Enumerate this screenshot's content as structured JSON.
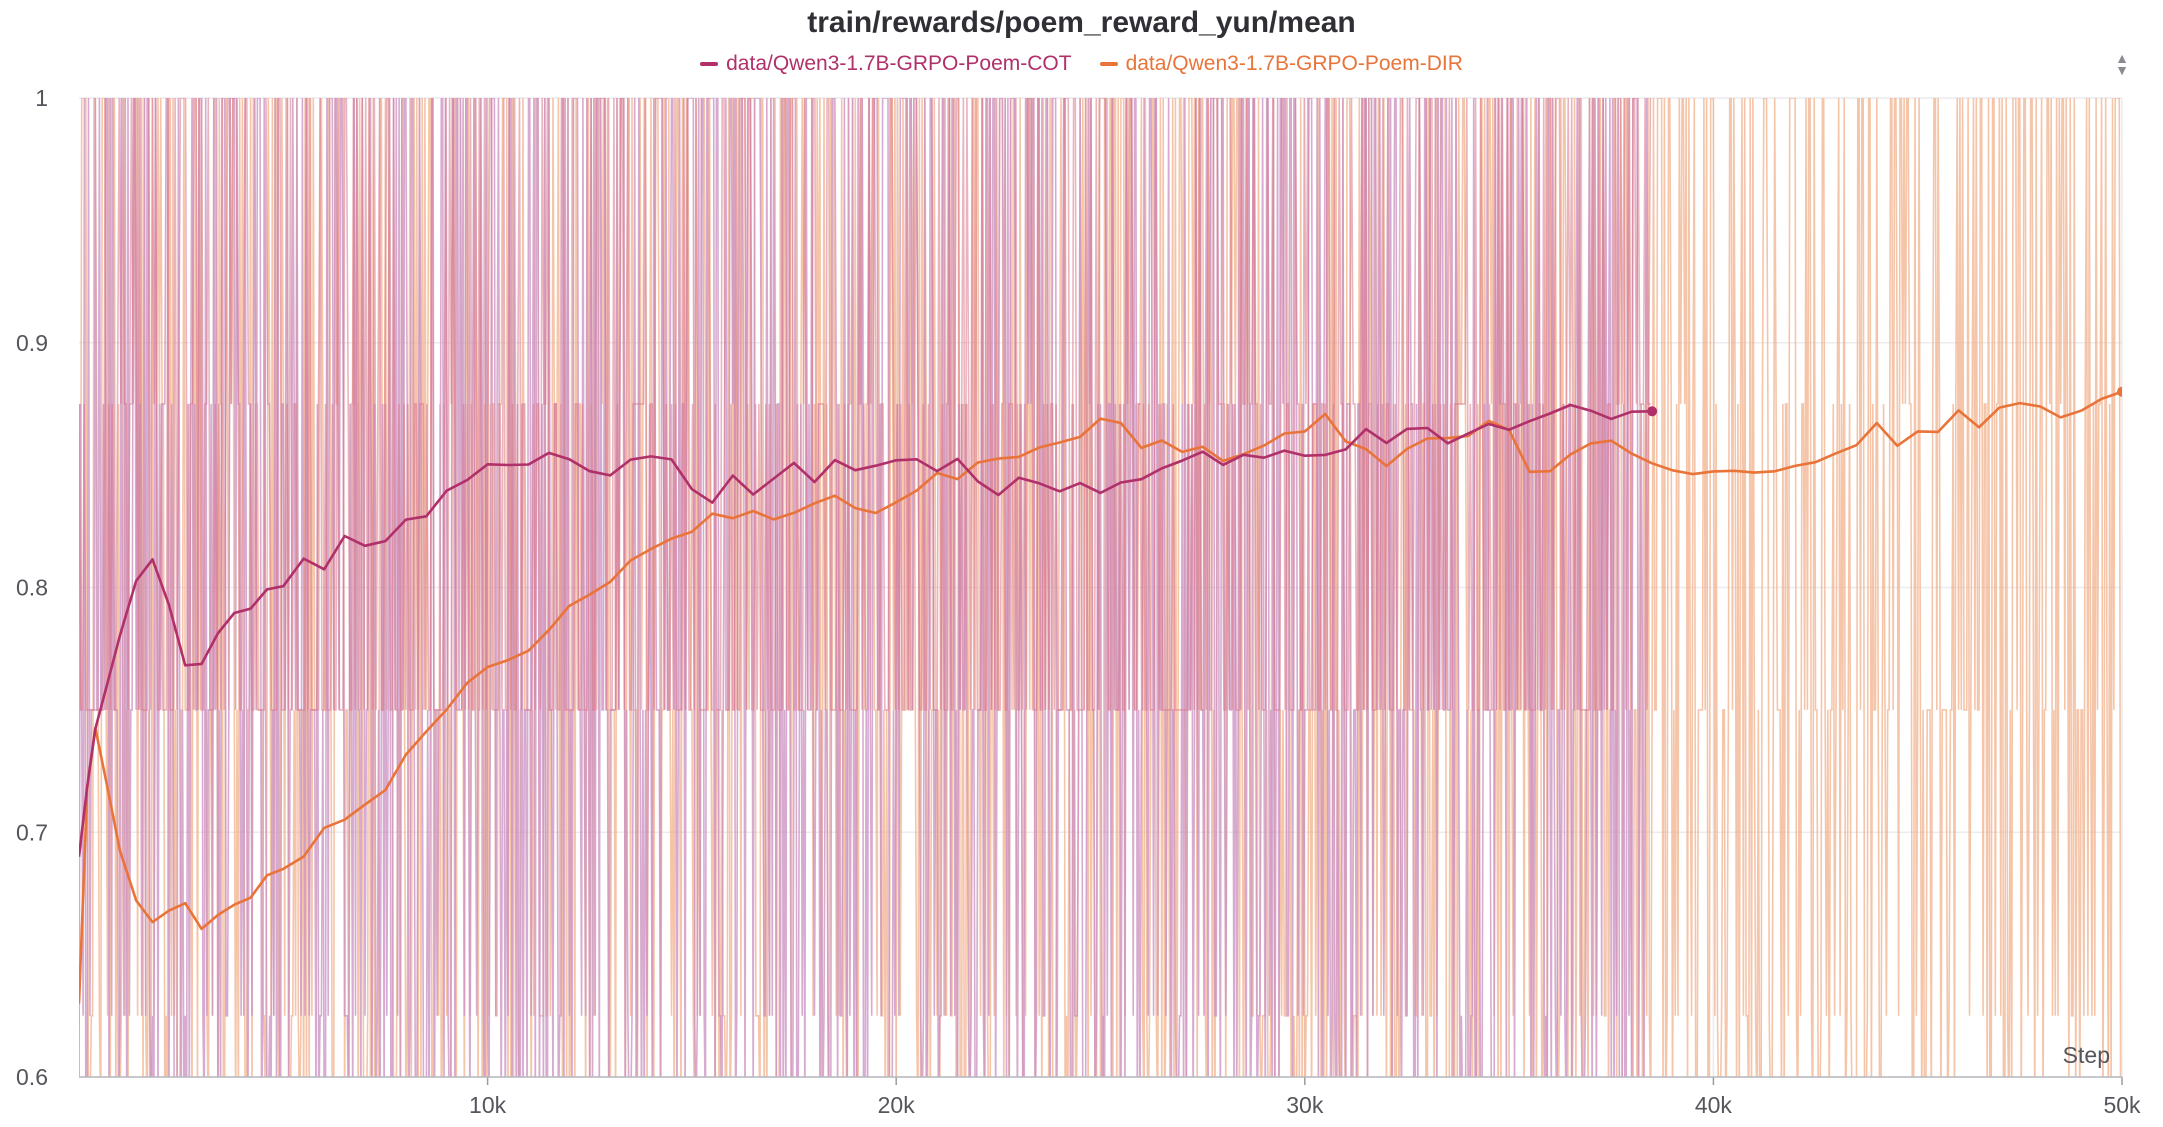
{
  "chart_data": {
    "type": "line",
    "title": "train/rewards/poem_reward_yun/mean",
    "xlabel": "Step",
    "ylabel": "",
    "xlim": [
      0,
      50000
    ],
    "ylim": [
      0.6,
      1.0
    ],
    "x_ticks": [
      "10k",
      "20k",
      "30k",
      "40k",
      "50k"
    ],
    "x_tick_values": [
      10000,
      20000,
      30000,
      40000,
      50000
    ],
    "y_ticks": [
      "0.6",
      "0.7",
      "0.8",
      "0.9",
      "1"
    ],
    "y_tick_values": [
      0.6,
      0.7,
      0.8,
      0.9,
      1.0
    ],
    "grid": true,
    "legend_position": "top-center",
    "series": [
      {
        "name": "data/Qwen3-1.7B-GRPO-Poem-COT",
        "color": "#b0306a",
        "raw_color": "#c98fc0",
        "raw_range": [
          0.5,
          1.0
        ],
        "raw_band": [
          0.75,
          1.0
        ],
        "x": [
          0,
          200,
          400,
          700,
          1000,
          1400,
          1800,
          2200,
          2600,
          3000,
          3400,
          3800,
          4200,
          4600,
          5000,
          5500,
          6000,
          6500,
          7000,
          7500,
          8000,
          8500,
          9000,
          9500,
          10000,
          10500,
          11000,
          11500,
          12000,
          12500,
          13000,
          13500,
          14000,
          14500,
          15000,
          15500,
          16000,
          16500,
          17000,
          17500,
          18000,
          18500,
          19000,
          19500,
          20000,
          20500,
          21000,
          21500,
          22000,
          22500,
          23000,
          23500,
          24000,
          24500,
          25000,
          25500,
          26000,
          26500,
          27000,
          27500,
          28000,
          28500,
          29000,
          29500,
          30000,
          30500,
          31000,
          31500,
          32000,
          32500,
          33000,
          33500,
          34000,
          34500,
          35000,
          35500,
          36000,
          36500,
          37000,
          37500,
          38000,
          38500
        ],
        "values": [
          0.69,
          0.72,
          0.74,
          0.76,
          0.78,
          0.8,
          0.81,
          0.79,
          0.77,
          0.77,
          0.78,
          0.79,
          0.79,
          0.8,
          0.8,
          0.81,
          0.81,
          0.82,
          0.82,
          0.82,
          0.83,
          0.83,
          0.84,
          0.845,
          0.85,
          0.85,
          0.853,
          0.855,
          0.85,
          0.845,
          0.847,
          0.85,
          0.853,
          0.852,
          0.84,
          0.835,
          0.845,
          0.84,
          0.845,
          0.85,
          0.845,
          0.85,
          0.847,
          0.85,
          0.853,
          0.85,
          0.845,
          0.85,
          0.845,
          0.84,
          0.845,
          0.845,
          0.84,
          0.845,
          0.84,
          0.845,
          0.845,
          0.85,
          0.853,
          0.855,
          0.852,
          0.855,
          0.853,
          0.855,
          0.853,
          0.855,
          0.858,
          0.862,
          0.86,
          0.862,
          0.863,
          0.86,
          0.862,
          0.865,
          0.867,
          0.865,
          0.87,
          0.872,
          0.87,
          0.868,
          0.87,
          0.872
        ]
      },
      {
        "name": "data/Qwen3-1.7B-GRPO-Poem-DIR",
        "color": "#e8743a",
        "raw_color": "#f2b28d",
        "raw_range": [
          0.5,
          1.0
        ],
        "raw_band": [
          0.75,
          1.0
        ],
        "x": [
          0,
          200,
          400,
          700,
          1000,
          1400,
          1800,
          2200,
          2600,
          3000,
          3400,
          3800,
          4200,
          4600,
          5000,
          5500,
          6000,
          6500,
          7000,
          7500,
          8000,
          8500,
          9000,
          9500,
          10000,
          10500,
          11000,
          11500,
          12000,
          12500,
          13000,
          13500,
          14000,
          14500,
          15000,
          15500,
          16000,
          16500,
          17000,
          17500,
          18000,
          18500,
          19000,
          19500,
          20000,
          20500,
          21000,
          21500,
          22000,
          22500,
          23000,
          23500,
          24000,
          24500,
          25000,
          25500,
          26000,
          26500,
          27000,
          27500,
          28000,
          28500,
          29000,
          29500,
          30000,
          30500,
          31000,
          31500,
          32000,
          32500,
          33000,
          33500,
          34000,
          34500,
          35000,
          35500,
          36000,
          36500,
          37000,
          37500,
          38000,
          38500,
          39000,
          39500,
          40000,
          40500,
          41000,
          41500,
          42000,
          42500,
          43000,
          43500,
          44000,
          44500,
          45000,
          45500,
          46000,
          46500,
          47000,
          47500,
          48000,
          48500,
          49000,
          49500,
          50000
        ],
        "values": [
          0.63,
          0.72,
          0.74,
          0.72,
          0.69,
          0.67,
          0.665,
          0.665,
          0.67,
          0.66,
          0.665,
          0.67,
          0.675,
          0.68,
          0.685,
          0.69,
          0.7,
          0.705,
          0.71,
          0.72,
          0.73,
          0.74,
          0.75,
          0.76,
          0.765,
          0.77,
          0.775,
          0.78,
          0.79,
          0.8,
          0.805,
          0.81,
          0.815,
          0.82,
          0.825,
          0.83,
          0.83,
          0.83,
          0.825,
          0.83,
          0.835,
          0.835,
          0.833,
          0.83,
          0.835,
          0.84,
          0.845,
          0.845,
          0.85,
          0.853,
          0.855,
          0.855,
          0.86,
          0.862,
          0.867,
          0.865,
          0.86,
          0.862,
          0.858,
          0.855,
          0.852,
          0.855,
          0.858,
          0.86,
          0.865,
          0.868,
          0.862,
          0.855,
          0.85,
          0.855,
          0.86,
          0.862,
          0.864,
          0.866,
          0.863,
          0.85,
          0.85,
          0.855,
          0.858,
          0.86,
          0.857,
          0.852,
          0.845,
          0.846,
          0.845,
          0.848,
          0.845,
          0.847,
          0.85,
          0.85,
          0.855,
          0.858,
          0.865,
          0.86,
          0.862,
          0.865,
          0.87,
          0.868,
          0.872,
          0.875,
          0.872,
          0.87,
          0.875,
          0.878,
          0.88
        ]
      }
    ]
  },
  "ui": {
    "sort_icon": "sort-updown-icon"
  }
}
